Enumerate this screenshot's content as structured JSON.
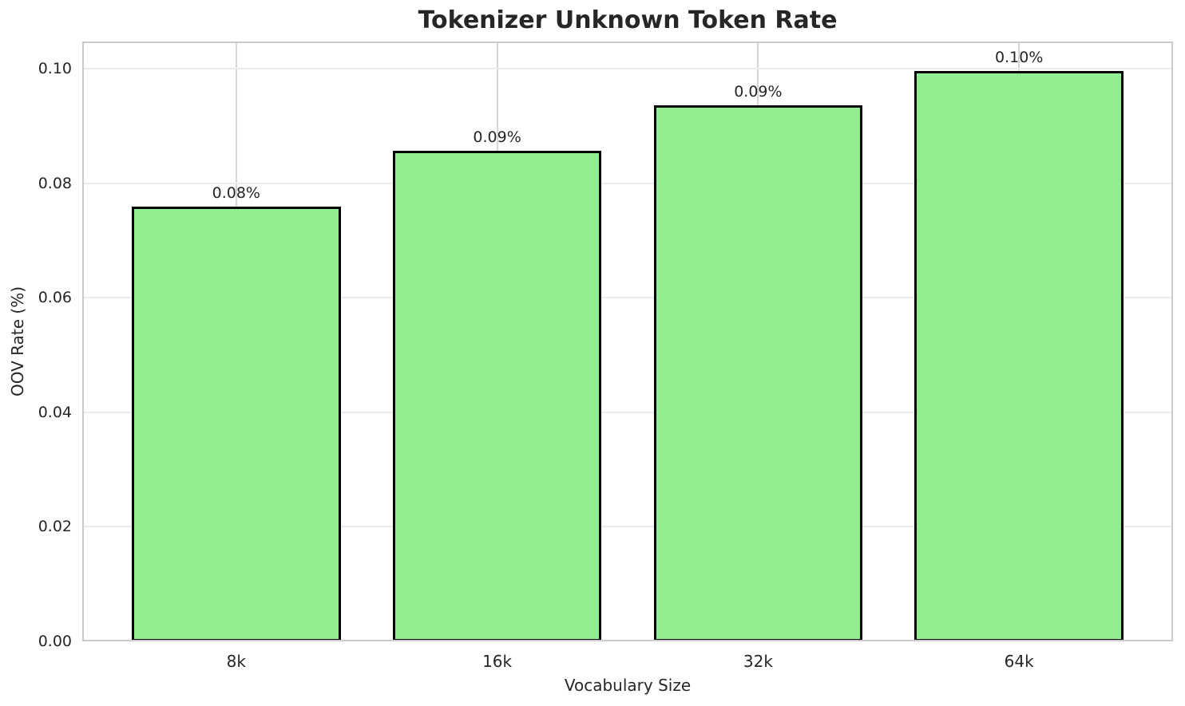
{
  "chart_data": {
    "type": "bar",
    "title": "Tokenizer Unknown Token Rate",
    "xlabel": "Vocabulary Size",
    "ylabel": "OOV Rate (%)",
    "categories": [
      "8k",
      "16k",
      "32k",
      "64k"
    ],
    "values": [
      0.0759,
      0.0857,
      0.0937,
      0.0997
    ],
    "bar_labels": [
      "0.08%",
      "0.09%",
      "0.09%",
      "0.10%"
    ],
    "ylim": [
      0,
      0.1048
    ],
    "yticks": [
      "0.00",
      "0.02",
      "0.04",
      "0.06",
      "0.08",
      "0.10"
    ],
    "grid": true,
    "legend_position": "none",
    "colors": {
      "bar_fill": "#90EE90",
      "bar_edge": "#000000",
      "grid_horizontal": "#ececec",
      "grid_vertical": "#d6d6d6",
      "spine": "#cccccc",
      "text": "#262626",
      "background": "#ffffff"
    }
  }
}
